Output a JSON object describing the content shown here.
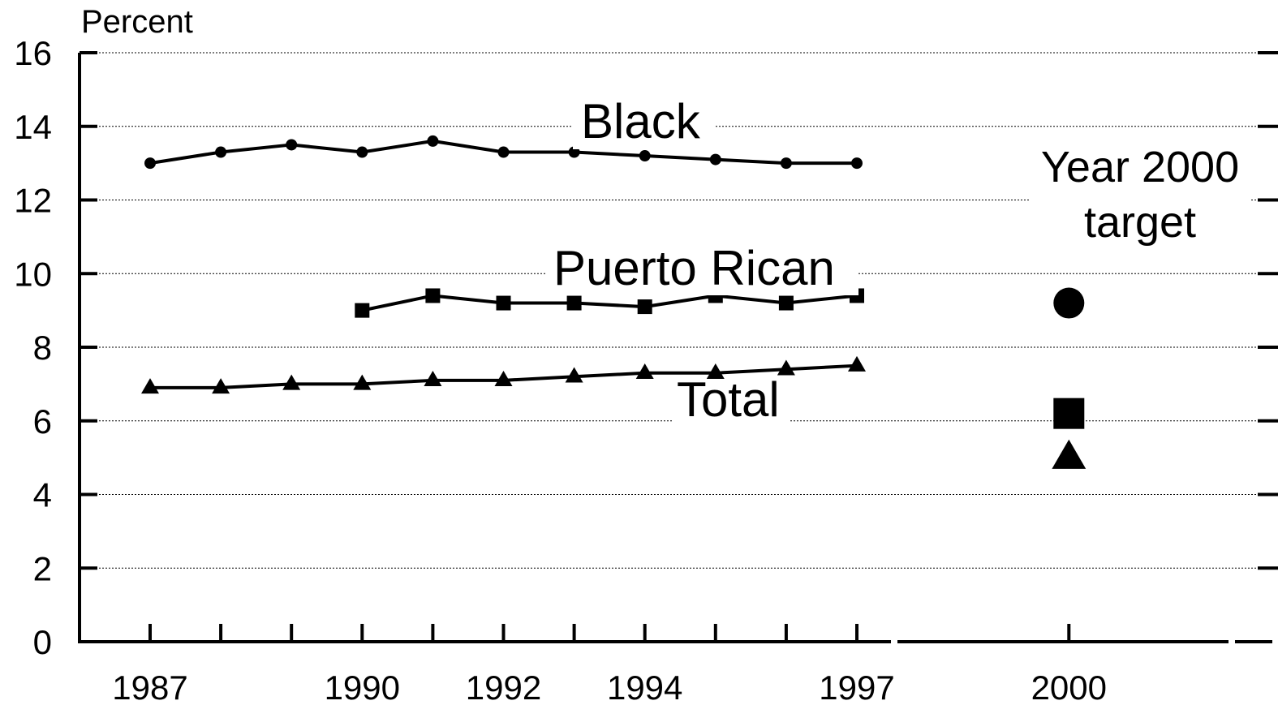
{
  "chart_data": {
    "type": "line",
    "ylabel": "Percent",
    "ylim": [
      0,
      16
    ],
    "yticks": [
      0,
      2,
      4,
      6,
      8,
      10,
      12,
      14,
      16
    ],
    "xlim": [
      1987,
      2000
    ],
    "xticks_marked": [
      1987,
      1988,
      1989,
      1990,
      1991,
      1992,
      1993,
      1994,
      1995,
      1996,
      1997,
      2000
    ],
    "xtick_labels": [
      "1987",
      "1990",
      "1992",
      "1994",
      "1997",
      "2000"
    ],
    "grid": "horizontal dotted",
    "series": [
      {
        "name": "Black",
        "marker": "circle",
        "x": [
          1987,
          1988,
          1989,
          1990,
          1991,
          1992,
          1993,
          1994,
          1995,
          1996,
          1997
        ],
        "values": [
          13.0,
          13.3,
          13.5,
          13.3,
          13.6,
          13.3,
          13.3,
          13.2,
          13.1,
          13.0,
          13.0
        ],
        "target": 9.2
      },
      {
        "name": "Puerto Rican",
        "marker": "square",
        "x": [
          1990,
          1991,
          1992,
          1993,
          1994,
          1995,
          1996,
          1997
        ],
        "values": [
          9.0,
          9.4,
          9.2,
          9.2,
          9.1,
          9.4,
          9.2,
          9.4
        ],
        "target": 6.2
      },
      {
        "name": "Total",
        "marker": "triangle",
        "x": [
          1987,
          1988,
          1989,
          1990,
          1991,
          1992,
          1993,
          1994,
          1995,
          1996,
          1997
        ],
        "values": [
          6.9,
          6.9,
          7.0,
          7.0,
          7.1,
          7.1,
          7.2,
          7.3,
          7.3,
          7.4,
          7.5
        ],
        "target": 5.0
      }
    ],
    "target_label_line1": "Year 2000",
    "target_label_line2": "target"
  }
}
